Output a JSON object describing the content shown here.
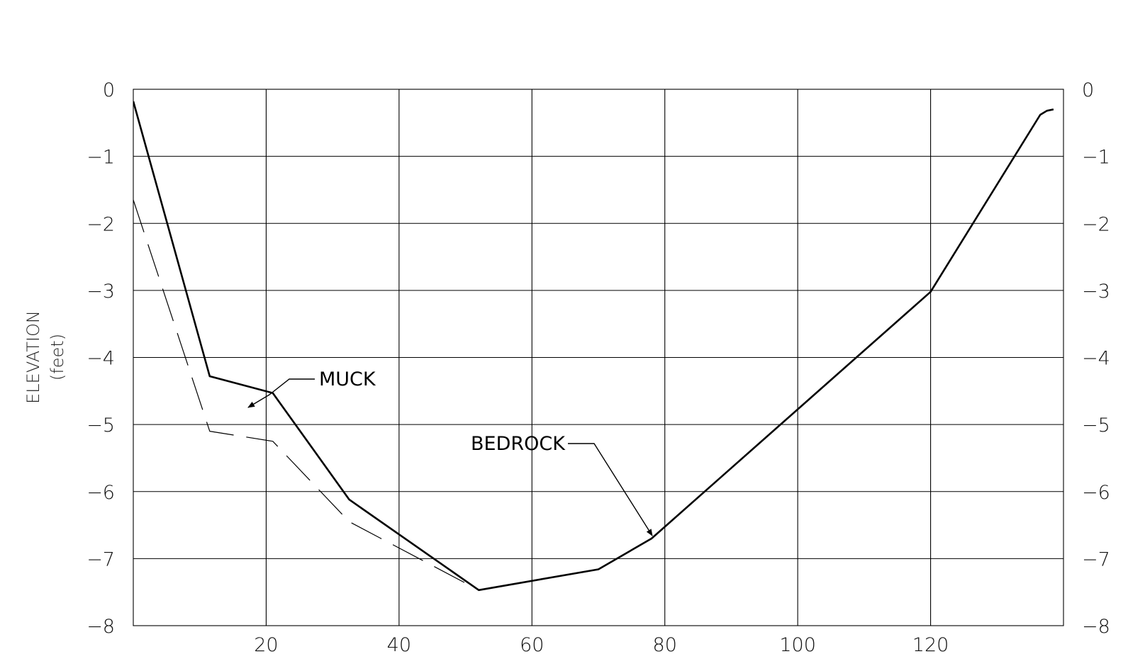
{
  "chart_data": {
    "type": "line",
    "title": "",
    "xlabel": "",
    "ylabel": "ELEVATION",
    "ylabel_unit": "(feet)",
    "xlim": [
      0,
      140
    ],
    "ylim": [
      -8,
      0
    ],
    "grid": true,
    "x_ticks": [
      "20",
      "40",
      "60",
      "80",
      "100",
      "120"
    ],
    "y_ticks_left": [
      "0",
      "−1",
      "−2",
      "−3",
      "−4",
      "−5",
      "−6",
      "−7",
      "−8"
    ],
    "y_ticks_right": [
      "0",
      "−1",
      "−2",
      "−3",
      "−4",
      "−5",
      "−6",
      "−7",
      "−8"
    ],
    "series": [
      {
        "name": "MUCK",
        "style": "solid",
        "x": [
          0,
          11.5,
          21,
          32.5,
          52,
          70,
          78,
          120,
          136.5,
          137.5,
          138.5
        ],
        "y": [
          -0.18,
          -4.28,
          -4.53,
          -6.12,
          -7.47,
          -7.16,
          -6.7,
          -3.02,
          -0.38,
          -0.32,
          -0.3
        ]
      },
      {
        "name": "BEDROCK",
        "style": "dashed",
        "x": [
          0,
          11.5,
          21,
          32.5,
          52
        ],
        "y": [
          -1.65,
          -5.1,
          -5.25,
          -6.45,
          -7.47
        ]
      }
    ],
    "annotations": [
      {
        "text": "MUCK",
        "points_to": [
          17.5,
          -4.8
        ]
      },
      {
        "text": "BEDROCK",
        "points_to": [
          77.5,
          -6.7
        ]
      }
    ]
  }
}
